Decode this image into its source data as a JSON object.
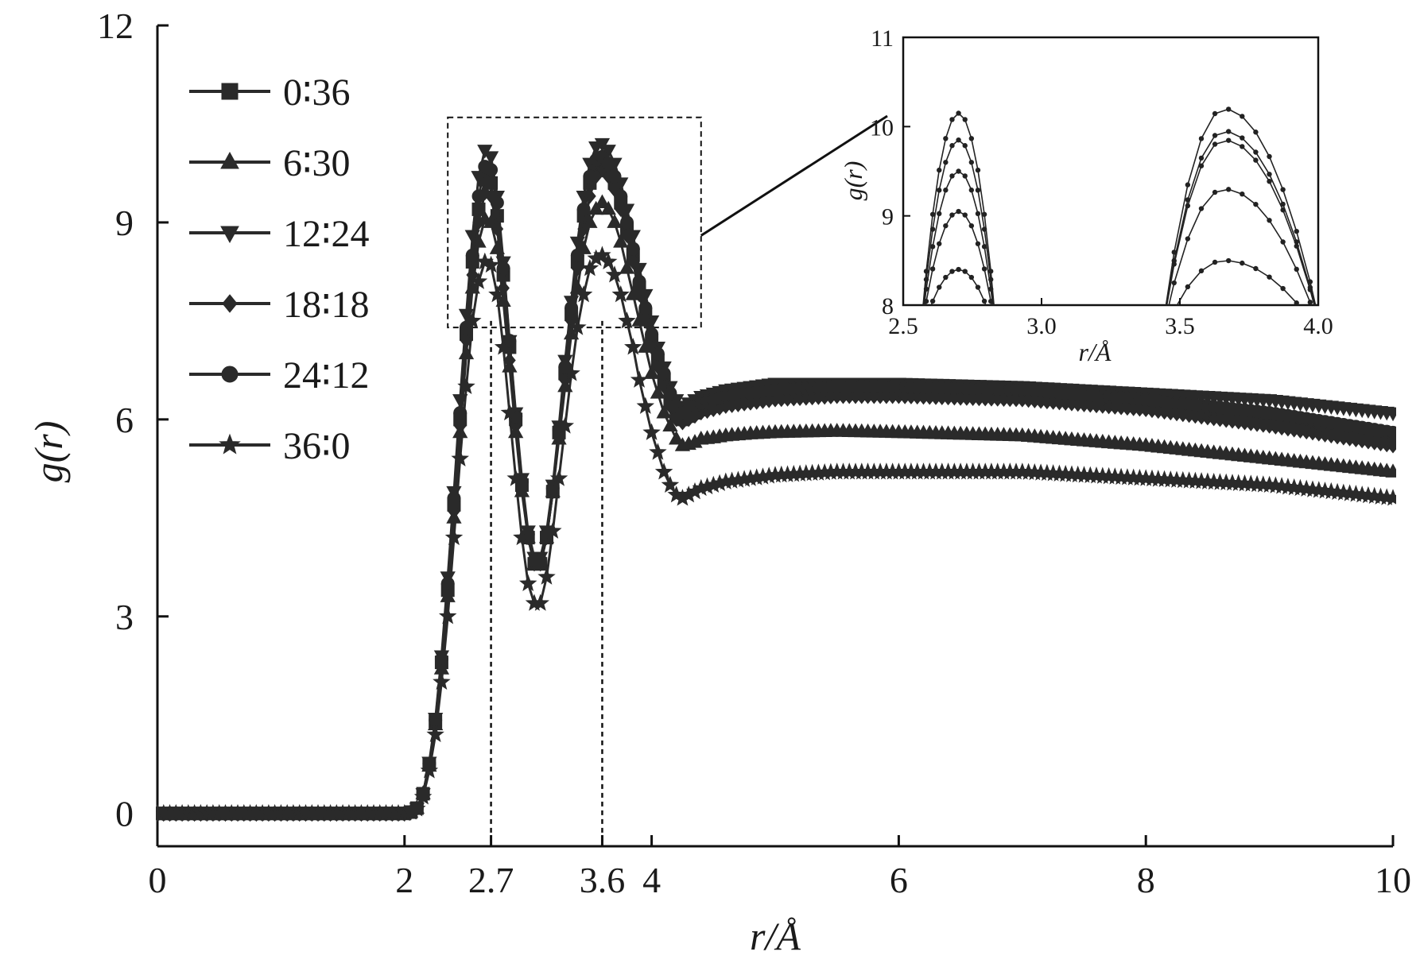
{
  "chart_data": [
    {
      "type": "line",
      "xlabel": "r/Å",
      "ylabel": "g(r)",
      "xlim": [
        0,
        10
      ],
      "ylim": [
        -0.5,
        12
      ],
      "xticks": [
        0,
        2,
        2.7,
        3.6,
        4,
        6,
        8,
        10
      ],
      "xtick_labels": [
        "0",
        "2",
        "2.7",
        "3.6",
        "4",
        "6",
        "8",
        "10"
      ],
      "yticks": [
        0,
        3,
        6,
        9,
        12
      ],
      "ytick_labels": [
        "0",
        "3",
        "6",
        "9",
        "12"
      ],
      "grid": false,
      "legend_position": "top-left",
      "annotations": [
        {
          "type": "vline",
          "x": 2.7,
          "style": "dashed"
        },
        {
          "type": "vline",
          "x": 3.6,
          "style": "dashed"
        },
        {
          "type": "zoom-box",
          "x": [
            2.35,
            4.4
          ],
          "y": [
            7.4,
            10.6
          ],
          "style": "dashed"
        }
      ],
      "series": [
        {
          "name": "0∶36",
          "marker": "square",
          "x": [
            0,
            2,
            2.05,
            2.1,
            2.15,
            2.2,
            2.25,
            2.3,
            2.35,
            2.4,
            2.45,
            2.5,
            2.55,
            2.6,
            2.65,
            2.7,
            2.75,
            2.8,
            2.85,
            2.9,
            2.95,
            3.0,
            3.05,
            3.1,
            3.15,
            3.2,
            3.25,
            3.3,
            3.35,
            3.4,
            3.45,
            3.5,
            3.55,
            3.6,
            3.65,
            3.7,
            3.75,
            3.8,
            3.85,
            3.9,
            3.95,
            4.0,
            4.05,
            4.1,
            4.15,
            4.2,
            4.25,
            4.3,
            4.35,
            4.4,
            4.5,
            4.6,
            4.8,
            5,
            5.5,
            6,
            7,
            8,
            9,
            10
          ],
          "y": [
            0,
            0,
            0.02,
            0.08,
            0.3,
            0.75,
            1.4,
            2.3,
            3.4,
            4.7,
            6.0,
            7.3,
            8.4,
            9.2,
            9.65,
            9.6,
            9.1,
            8.2,
            7.1,
            6.0,
            5.0,
            4.2,
            3.8,
            3.8,
            4.2,
            4.9,
            5.8,
            6.7,
            7.6,
            8.4,
            9.1,
            9.6,
            9.85,
            9.95,
            9.85,
            9.6,
            9.3,
            8.9,
            8.5,
            8.0,
            7.6,
            7.2,
            6.9,
            6.6,
            6.3,
            6.1,
            6.0,
            6.05,
            6.1,
            6.15,
            6.2,
            6.25,
            6.3,
            6.35,
            6.4,
            6.4,
            6.35,
            6.2,
            6.0,
            5.7
          ]
        },
        {
          "name": "6∶30",
          "marker": "triangle-up",
          "x": [
            0,
            2,
            2.05,
            2.1,
            2.15,
            2.2,
            2.25,
            2.3,
            2.35,
            2.4,
            2.45,
            2.5,
            2.55,
            2.6,
            2.65,
            2.7,
            2.75,
            2.8,
            2.85,
            2.9,
            2.95,
            3.0,
            3.05,
            3.1,
            3.15,
            3.2,
            3.25,
            3.3,
            3.35,
            3.4,
            3.45,
            3.5,
            3.55,
            3.6,
            3.65,
            3.7,
            3.75,
            3.8,
            3.85,
            3.9,
            3.95,
            4.0,
            4.05,
            4.1,
            4.15,
            4.2,
            4.25,
            4.3,
            4.35,
            4.4,
            4.5,
            4.6,
            4.8,
            5,
            5.5,
            6,
            7,
            8,
            9,
            10
          ],
          "y": [
            0,
            0,
            0.02,
            0.08,
            0.3,
            0.72,
            1.35,
            2.2,
            3.3,
            4.5,
            5.8,
            7.0,
            8.0,
            8.7,
            9.05,
            9.0,
            8.6,
            7.8,
            6.8,
            5.8,
            4.9,
            4.2,
            3.8,
            3.8,
            4.2,
            4.9,
            5.7,
            6.5,
            7.3,
            8.0,
            8.6,
            9.0,
            9.2,
            9.3,
            9.2,
            9.0,
            8.7,
            8.3,
            7.9,
            7.5,
            7.1,
            6.7,
            6.4,
            6.1,
            5.9,
            5.7,
            5.6,
            5.62,
            5.65,
            5.7,
            5.72,
            5.75,
            5.78,
            5.8,
            5.82,
            5.8,
            5.75,
            5.6,
            5.4,
            5.2
          ]
        },
        {
          "name": "12∶24",
          "marker": "triangle-down",
          "x": [
            0,
            2,
            2.05,
            2.1,
            2.15,
            2.2,
            2.25,
            2.3,
            2.35,
            2.4,
            2.45,
            2.5,
            2.55,
            2.6,
            2.65,
            2.7,
            2.75,
            2.8,
            2.85,
            2.9,
            2.95,
            3.0,
            3.05,
            3.1,
            3.15,
            3.2,
            3.25,
            3.3,
            3.35,
            3.4,
            3.45,
            3.5,
            3.55,
            3.6,
            3.65,
            3.7,
            3.75,
            3.8,
            3.85,
            3.9,
            3.95,
            4.0,
            4.05,
            4.1,
            4.15,
            4.2,
            4.25,
            4.3,
            4.35,
            4.4,
            4.5,
            4.6,
            4.8,
            5,
            5.5,
            6,
            7,
            8,
            9,
            10
          ],
          "y": [
            0,
            0,
            0.02,
            0.08,
            0.3,
            0.78,
            1.45,
            2.4,
            3.6,
            4.9,
            6.3,
            7.6,
            8.8,
            9.7,
            10.1,
            10.0,
            9.4,
            8.4,
            7.2,
            6.1,
            5.1,
            4.3,
            3.9,
            3.9,
            4.3,
            5.0,
            5.9,
            6.9,
            7.8,
            8.7,
            9.4,
            9.9,
            10.15,
            10.2,
            10.1,
            9.9,
            9.6,
            9.2,
            8.8,
            8.3,
            7.9,
            7.5,
            7.1,
            6.8,
            6.5,
            6.3,
            6.2,
            6.25,
            6.3,
            6.35,
            6.4,
            6.45,
            6.5,
            6.55,
            6.55,
            6.55,
            6.5,
            6.4,
            6.3,
            6.1
          ]
        },
        {
          "name": "18∶18",
          "marker": "diamond",
          "x": [
            0,
            2,
            2.05,
            2.1,
            2.15,
            2.2,
            2.25,
            2.3,
            2.35,
            2.4,
            2.45,
            2.5,
            2.55,
            2.6,
            2.65,
            2.7,
            2.75,
            2.8,
            2.85,
            2.9,
            2.95,
            3.0,
            3.05,
            3.1,
            3.15,
            3.2,
            3.25,
            3.3,
            3.35,
            3.4,
            3.45,
            3.5,
            3.55,
            3.6,
            3.65,
            3.7,
            3.75,
            3.8,
            3.85,
            3.9,
            3.95,
            4.0,
            4.05,
            4.1,
            4.15,
            4.2,
            4.25,
            4.3,
            4.35,
            4.4,
            4.5,
            4.6,
            4.8,
            5,
            5.5,
            6,
            7,
            8,
            9,
            10
          ],
          "y": [
            0,
            0,
            0.02,
            0.08,
            0.3,
            0.74,
            1.38,
            2.25,
            3.35,
            4.6,
            5.9,
            7.2,
            8.2,
            9.0,
            9.45,
            9.4,
            8.9,
            8.0,
            6.9,
            5.9,
            4.95,
            4.2,
            3.8,
            3.8,
            4.2,
            4.9,
            5.75,
            6.6,
            7.5,
            8.3,
            8.9,
            9.4,
            9.7,
            9.8,
            9.7,
            9.5,
            9.2,
            8.8,
            8.4,
            7.9,
            7.5,
            7.1,
            6.8,
            6.5,
            6.2,
            6.0,
            5.95,
            6.0,
            6.05,
            6.1,
            6.15,
            6.2,
            6.25,
            6.3,
            6.35,
            6.35,
            6.3,
            6.15,
            5.9,
            5.6
          ]
        },
        {
          "name": "24∶12",
          "marker": "circle",
          "x": [
            0,
            2,
            2.05,
            2.1,
            2.15,
            2.2,
            2.25,
            2.3,
            2.35,
            2.4,
            2.45,
            2.5,
            2.55,
            2.6,
            2.65,
            2.7,
            2.75,
            2.8,
            2.85,
            2.9,
            2.95,
            3.0,
            3.05,
            3.1,
            3.15,
            3.2,
            3.25,
            3.3,
            3.35,
            3.4,
            3.45,
            3.5,
            3.55,
            3.6,
            3.65,
            3.7,
            3.75,
            3.8,
            3.85,
            3.9,
            3.95,
            4.0,
            4.05,
            4.1,
            4.15,
            4.2,
            4.25,
            4.3,
            4.35,
            4.4,
            4.5,
            4.6,
            4.8,
            5,
            5.5,
            6,
            7,
            8,
            9,
            10
          ],
          "y": [
            0,
            0,
            0.02,
            0.08,
            0.3,
            0.76,
            1.42,
            2.35,
            3.5,
            4.8,
            6.1,
            7.4,
            8.5,
            9.4,
            9.85,
            9.8,
            9.3,
            8.3,
            7.2,
            6.05,
            5.05,
            4.25,
            3.85,
            3.85,
            4.25,
            4.95,
            5.85,
            6.8,
            7.7,
            8.5,
            9.2,
            9.7,
            9.95,
            10.0,
            9.9,
            9.7,
            9.4,
            9.0,
            8.6,
            8.1,
            7.7,
            7.3,
            7.0,
            6.7,
            6.4,
            6.2,
            6.1,
            6.15,
            6.2,
            6.25,
            6.3,
            6.35,
            6.4,
            6.45,
            6.5,
            6.5,
            6.45,
            6.3,
            6.1,
            5.8
          ]
        },
        {
          "name": "36∶0",
          "marker": "star",
          "x": [
            0,
            2,
            2.05,
            2.1,
            2.15,
            2.2,
            2.25,
            2.3,
            2.35,
            2.4,
            2.45,
            2.5,
            2.55,
            2.6,
            2.65,
            2.7,
            2.75,
            2.8,
            2.85,
            2.9,
            2.95,
            3.0,
            3.05,
            3.1,
            3.15,
            3.2,
            3.25,
            3.3,
            3.35,
            3.4,
            3.45,
            3.5,
            3.55,
            3.6,
            3.65,
            3.7,
            3.75,
            3.8,
            3.85,
            3.9,
            3.95,
            4.0,
            4.05,
            4.1,
            4.15,
            4.2,
            4.25,
            4.3,
            4.35,
            4.4,
            4.5,
            4.6,
            4.8,
            5,
            5.5,
            6,
            7,
            8,
            9,
            10
          ],
          "y": [
            0,
            0,
            0.02,
            0.07,
            0.25,
            0.65,
            1.2,
            2.0,
            3.0,
            4.2,
            5.4,
            6.5,
            7.5,
            8.1,
            8.4,
            8.35,
            7.9,
            7.1,
            6.1,
            5.1,
            4.2,
            3.5,
            3.2,
            3.2,
            3.6,
            4.3,
            5.1,
            5.9,
            6.7,
            7.4,
            7.9,
            8.3,
            8.45,
            8.5,
            8.4,
            8.2,
            7.9,
            7.5,
            7.1,
            6.6,
            6.2,
            5.8,
            5.5,
            5.2,
            5.0,
            4.85,
            4.8,
            4.85,
            4.9,
            4.95,
            5.0,
            5.05,
            5.1,
            5.15,
            5.2,
            5.2,
            5.2,
            5.1,
            5.0,
            4.8
          ]
        }
      ]
    },
    {
      "type": "line",
      "xlabel": "r/Å",
      "ylabel": "g(r)",
      "xlim": [
        2.5,
        4.0
      ],
      "ylim": [
        8,
        11
      ],
      "xticks": [
        2.5,
        3.0,
        3.5,
        4.0
      ],
      "xtick_labels": [
        "2.5",
        "3.0",
        "3.5",
        "4.0"
      ],
      "yticks": [
        8,
        9,
        10,
        11
      ],
      "ytick_labels": [
        "8",
        "9",
        "10",
        "11"
      ],
      "grid": false,
      "peaks": [
        {
          "x0": 2.56,
          "x1": 2.84,
          "xc": 2.7,
          "y": [
            8.4,
            9.05,
            9.5,
            9.85,
            10.15
          ]
        },
        {
          "x0": 3.43,
          "x1": 4.02,
          "xc": 3.66,
          "y": [
            8.5,
            9.3,
            9.85,
            9.95,
            10.2
          ]
        }
      ]
    }
  ]
}
